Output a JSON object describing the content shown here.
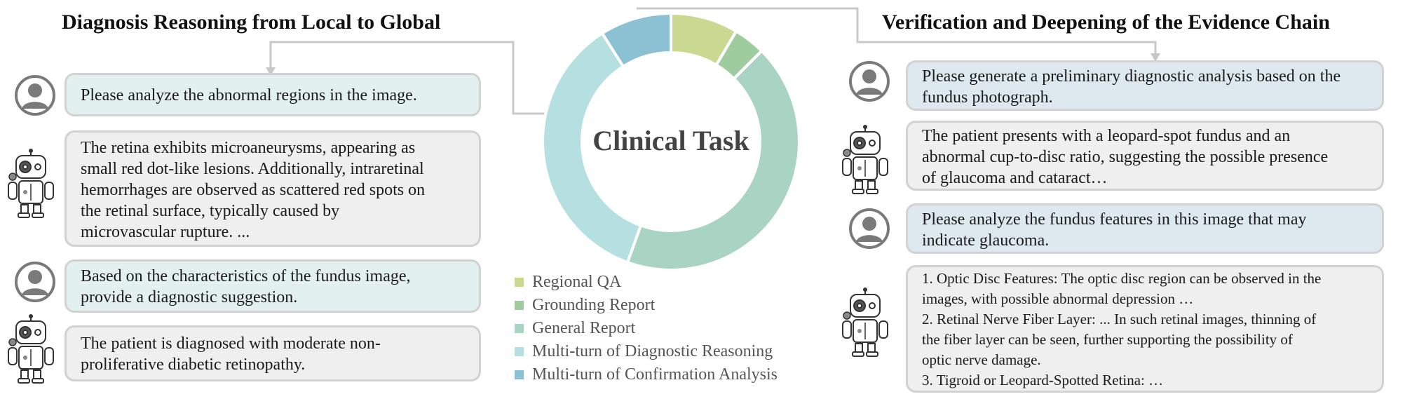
{
  "left_panel": {
    "title": "Diagnosis Reasoning from Local to Global",
    "messages": [
      {
        "role": "user",
        "lines": [
          "Please analyze the abnormal regions in the image."
        ]
      },
      {
        "role": "assistant",
        "lines": [
          "The retina exhibits microaneurysms, appearing as",
          "small red dot-like lesions. Additionally, intraretinal",
          "hemorrhages are observed as scattered red spots on",
          "the retinal surface, typically caused by",
          "microvascular rupture. ..."
        ]
      },
      {
        "role": "user",
        "lines": [
          "Based on the characteristics of the fundus image,",
          "provide a diagnostic suggestion."
        ]
      },
      {
        "role": "assistant",
        "lines": [
          "The patient is diagnosed with moderate non-",
          "proliferative diabetic retinopathy."
        ]
      }
    ]
  },
  "right_panel": {
    "title": "Verification and Deepening of the Evidence Chain",
    "messages": [
      {
        "role": "user",
        "lines": [
          "Please generate a preliminary diagnostic analysis based on the",
          "fundus photograph."
        ]
      },
      {
        "role": "assistant",
        "lines": [
          "The patient presents with a leopard-spot fundus and an",
          "abnormal cup-to-disc ratio, suggesting the possible presence",
          "of glaucoma and cataract…"
        ]
      },
      {
        "role": "user",
        "lines": [
          "Please analyze the fundus features in this image that may",
          "indicate glaucoma."
        ]
      },
      {
        "role": "assistant",
        "lines": [
          "1. Optic Disc Features: The optic disc region can be observed in the",
          "images, with possible abnormal depression …",
          "2. Retinal Nerve Fiber Layer: ... In such retinal images, thinning of",
          "the fiber layer can be seen, further supporting the possibility of",
          "optic nerve damage.",
          "3. Tigroid or Leopard-Spotted Retina: …"
        ]
      }
    ]
  },
  "chart_data": {
    "type": "pie",
    "title": "Clinical Task",
    "categories": [
      "Regional QA",
      "Grounding Report",
      "General Report",
      "Multi-turn of Diagnostic Reasoning",
      "Multi-turn of Confirmation Analysis"
    ],
    "values": [
      8.5,
      4.0,
      43.0,
      35.5,
      9.0
    ],
    "colors": [
      "#c9d991",
      "#9fcc9f",
      "#a9d4c4",
      "#b5dfe0",
      "#8cc0d3"
    ]
  },
  "icons": {
    "user": "user-avatar-icon",
    "assistant": "robot-doctor-icon"
  },
  "colors": {
    "user_bubble": "#e2f1ef",
    "user_bubble_right": "#dde9ee",
    "assistant_bubble": "#efefef",
    "border": "#d2d2d2",
    "connector": "#c8c8c8"
  }
}
